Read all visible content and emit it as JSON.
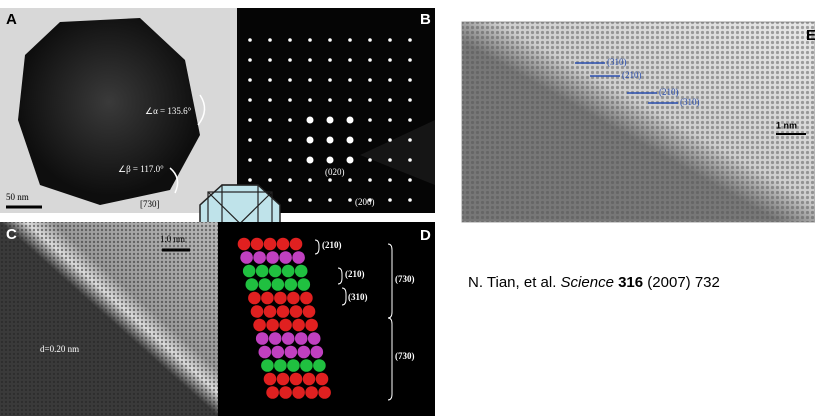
{
  "panels": {
    "a": {
      "label": "A",
      "angle_alpha": "∠α = 135.6°",
      "angle_beta": "∠β = 117.0°",
      "scale_bar": "50 nm",
      "direction": "[730]"
    },
    "b": {
      "label": "B",
      "spot_1": "(020)",
      "spot_2": "(200)"
    },
    "c": {
      "label": "C",
      "scale_bar": "1.0 nm",
      "spacing": "d=0.20 nm"
    },
    "d": {
      "label": "D",
      "facets": [
        "(210)",
        "(210)",
        "(310)",
        "(730)",
        "(730)"
      ]
    },
    "e": {
      "label": "E",
      "steps": [
        "(310)",
        "(210)",
        "(210)",
        "(310)"
      ],
      "scale_bar": "1 nm"
    }
  },
  "citation": {
    "authors": "N. Tian, et al.",
    "journal": "Science",
    "volume": "316",
    "rest": "(2007) 732"
  }
}
